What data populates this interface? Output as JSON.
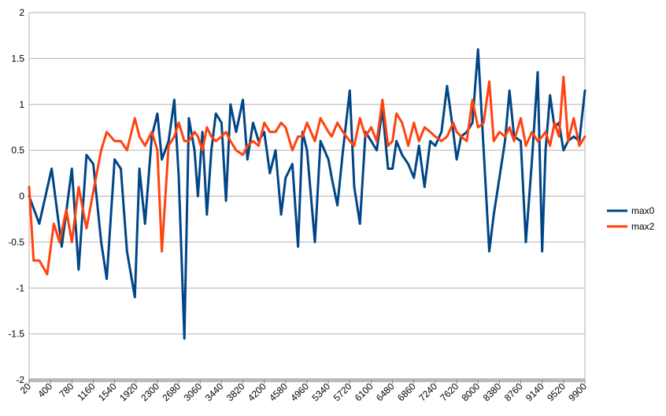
{
  "chart_data": {
    "type": "line",
    "title": "",
    "xlabel": "",
    "ylabel": "",
    "ylim": [
      -2,
      2
    ],
    "yticks": [
      2,
      1.5,
      1,
      0.5,
      0,
      -0.5,
      -1,
      -1.5,
      -2
    ],
    "xlim": [
      20,
      9900
    ],
    "xticks": [
      "20",
      "400",
      "780",
      "1160",
      "1540",
      "1920",
      "2300",
      "2680",
      "3060",
      "3440",
      "3820",
      "4200",
      "4580",
      "4960",
      "5340",
      "5720",
      "6100",
      "6480",
      "6860",
      "7240",
      "7620",
      "8000",
      "8380",
      "8760",
      "9140",
      "9520",
      "9900"
    ],
    "legend_position": "right",
    "grid": true,
    "series": [
      {
        "name": "max0",
        "color": "#004586",
        "x": [
          20,
          200,
          420,
          600,
          780,
          900,
          1040,
          1160,
          1300,
          1400,
          1540,
          1650,
          1760,
          1900,
          1980,
          2080,
          2200,
          2300,
          2380,
          2500,
          2600,
          2680,
          2780,
          2860,
          2960,
          3020,
          3100,
          3180,
          3260,
          3340,
          3440,
          3520,
          3600,
          3700,
          3820,
          3900,
          4000,
          4100,
          4200,
          4300,
          4400,
          4500,
          4580,
          4700,
          4800,
          4880,
          4960,
          5100,
          5200,
          5340,
          5400,
          5500,
          5600,
          5720,
          5800,
          5900,
          6000,
          6100,
          6200,
          6300,
          6400,
          6480,
          6550,
          6650,
          6760,
          6860,
          6950,
          7050,
          7150,
          7240,
          7350,
          7450,
          7560,
          7620,
          7700,
          7800,
          7900,
          8000,
          8100,
          8200,
          8280,
          8380,
          8480,
          8560,
          8640,
          8760,
          8850,
          8960,
          9060,
          9140,
          9200,
          9280,
          9360,
          9440,
          9520,
          9600,
          9700,
          9800,
          9900
        ],
        "y": [
          0,
          -0.3,
          0.3,
          -0.55,
          0.3,
          -0.8,
          0.45,
          0.35,
          -0.5,
          -0.9,
          0.4,
          0.3,
          -0.6,
          -1.1,
          0.3,
          -0.3,
          0.65,
          0.9,
          0.4,
          0.6,
          1.05,
          0.2,
          -1.55,
          0.85,
          0.5,
          0,
          0.7,
          -0.2,
          0.5,
          0.9,
          0.8,
          -0.05,
          1,
          0.7,
          1.05,
          0.4,
          0.8,
          0.6,
          0.7,
          0.25,
          0.5,
          -0.2,
          0.2,
          0.35,
          -0.55,
          0.7,
          0.5,
          -0.5,
          0.6,
          0.4,
          0.2,
          -0.1,
          0.5,
          1.15,
          0.1,
          -0.3,
          0.7,
          0.6,
          0.5,
          0.95,
          0.3,
          0.3,
          0.6,
          0.45,
          0.35,
          0.2,
          0.55,
          0.1,
          0.6,
          0.55,
          0.7,
          1.2,
          0.7,
          0.4,
          0.65,
          0.7,
          0.8,
          1.6,
          0.5,
          -0.6,
          -0.2,
          0.2,
          0.6,
          1.15,
          0.65,
          0.6,
          -0.5,
          0.4,
          1.35,
          -0.6,
          0.5,
          1.1,
          0.75,
          0.8,
          0.5,
          0.6,
          0.65,
          0.6,
          1.15
        ]
      },
      {
        "name": "max2",
        "color": "#ff420e",
        "x": [
          20,
          100,
          200,
          340,
          460,
          560,
          680,
          780,
          900,
          1040,
          1160,
          1300,
          1400,
          1540,
          1650,
          1760,
          1900,
          1980,
          2080,
          2200,
          2300,
          2380,
          2500,
          2600,
          2680,
          2780,
          2860,
          2960,
          3020,
          3100,
          3180,
          3260,
          3340,
          3440,
          3520,
          3600,
          3700,
          3820,
          3900,
          4000,
          4100,
          4200,
          4300,
          4400,
          4500,
          4580,
          4700,
          4800,
          4880,
          4960,
          5100,
          5200,
          5340,
          5400,
          5500,
          5600,
          5720,
          5800,
          5900,
          6000,
          6100,
          6200,
          6300,
          6400,
          6480,
          6550,
          6650,
          6760,
          6860,
          6950,
          7050,
          7150,
          7240,
          7350,
          7450,
          7560,
          7620,
          7700,
          7800,
          7900,
          8000,
          8100,
          8200,
          8280,
          8380,
          8480,
          8560,
          8640,
          8760,
          8850,
          8960,
          9060,
          9140,
          9200,
          9280,
          9360,
          9440,
          9520,
          9600,
          9700,
          9800,
          9900
        ],
        "y": [
          0.1,
          -0.7,
          -0.7,
          -0.85,
          -0.3,
          -0.5,
          -0.15,
          -0.5,
          0.1,
          -0.35,
          0.05,
          0.5,
          0.7,
          0.6,
          0.6,
          0.5,
          0.85,
          0.65,
          0.55,
          0.7,
          0.5,
          -0.6,
          0.55,
          0.65,
          0.8,
          0.6,
          0.6,
          0.7,
          0.65,
          0.5,
          0.75,
          0.65,
          0.6,
          0.65,
          0.7,
          0.6,
          0.5,
          0.45,
          0.55,
          0.6,
          0.55,
          0.8,
          0.7,
          0.7,
          0.8,
          0.75,
          0.5,
          0.65,
          0.65,
          0.8,
          0.6,
          0.85,
          0.7,
          0.65,
          0.8,
          0.7,
          0.6,
          0.55,
          0.85,
          0.65,
          0.75,
          0.6,
          1.05,
          0.55,
          0.6,
          0.9,
          0.8,
          0.55,
          0.8,
          0.6,
          0.75,
          0.7,
          0.65,
          0.6,
          0.65,
          0.8,
          0.7,
          0.65,
          0.6,
          1.05,
          0.75,
          0.8,
          1.25,
          0.6,
          0.7,
          0.65,
          0.75,
          0.6,
          0.85,
          0.55,
          0.7,
          0.6,
          0.65,
          0.7,
          0.55,
          0.8,
          0.65,
          1.3,
          0.6,
          0.85,
          0.55,
          0.65
        ]
      }
    ]
  }
}
